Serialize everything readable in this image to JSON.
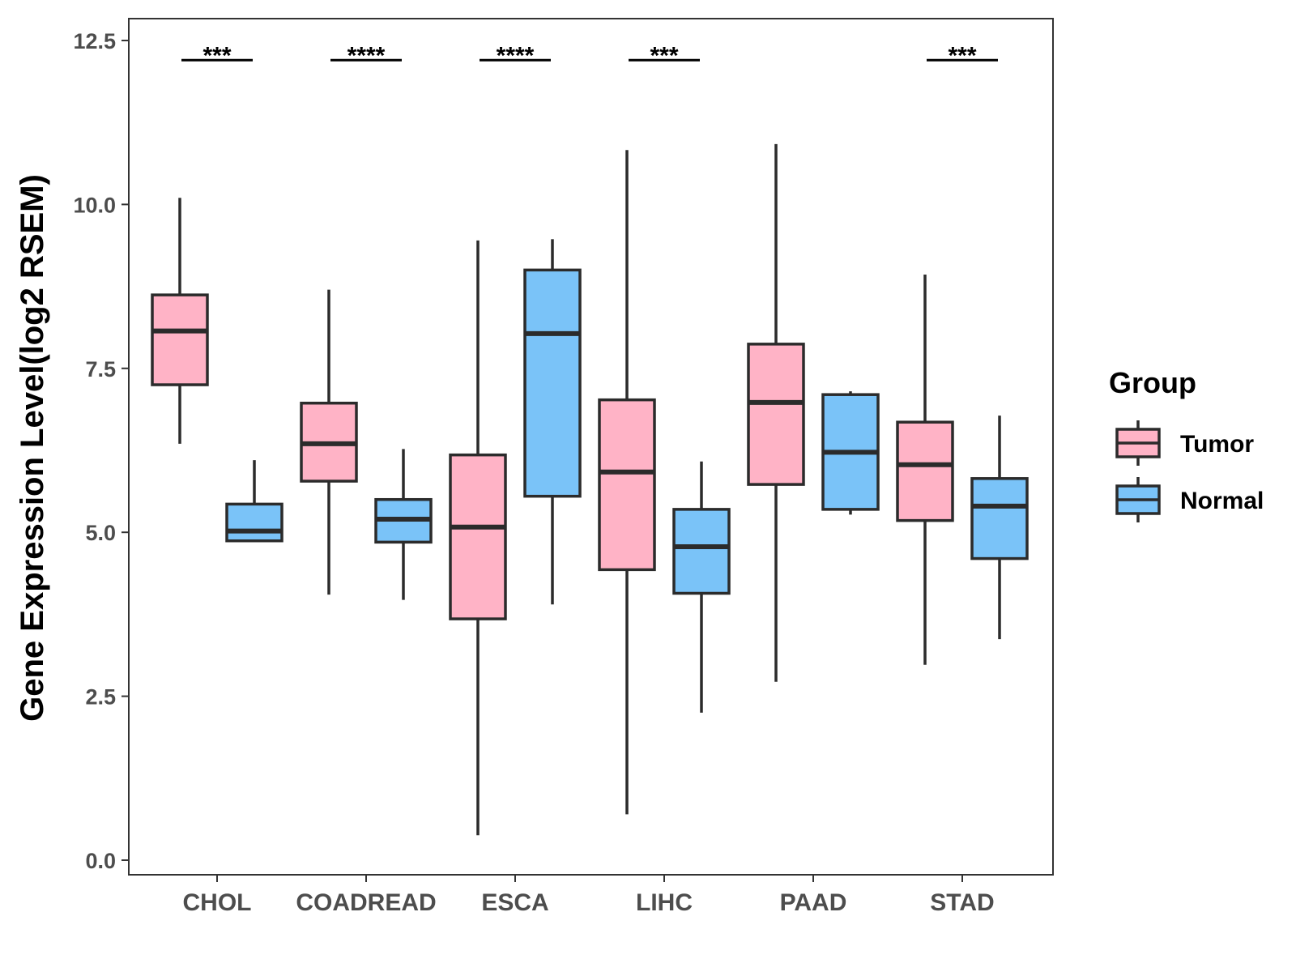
{
  "chart_data": {
    "type": "box",
    "title": "",
    "xlabel": "",
    "ylabel": "Gene Expression Level(log2 RSEM)",
    "ylim": [
      -0.2,
      12.85
    ],
    "yticks": [
      0.0,
      2.5,
      5.0,
      7.5,
      10.0,
      12.5
    ],
    "ytick_labels": [
      "0.0",
      "2.5",
      "5.0",
      "7.5",
      "10.0",
      "12.5"
    ],
    "categories": [
      "CHOL",
      "COADREAD",
      "ESCA",
      "LIHC",
      "PAAD",
      "STAD"
    ],
    "grid": false,
    "legend": {
      "title": "Group",
      "position": "right",
      "entries": [
        {
          "name": "Tumor",
          "color": "#FFB3C6"
        },
        {
          "name": "Normal",
          "color": "#7AC3F8"
        }
      ]
    },
    "series": [
      {
        "name": "Tumor",
        "color": "#FFB3C6",
        "boxes": [
          {
            "min": 6.35,
            "q1": 7.25,
            "median": 8.07,
            "q3": 8.62,
            "max": 10.1
          },
          {
            "min": 4.05,
            "q1": 5.78,
            "median": 6.35,
            "q3": 6.97,
            "max": 8.7
          },
          {
            "min": 0.38,
            "q1": 3.68,
            "median": 5.08,
            "q3": 6.18,
            "max": 9.45
          },
          {
            "min": 0.7,
            "q1": 4.43,
            "median": 5.92,
            "q3": 7.02,
            "max": 10.83
          },
          {
            "min": 2.72,
            "q1": 5.73,
            "median": 6.98,
            "q3": 7.87,
            "max": 10.92
          },
          {
            "min": 2.98,
            "q1": 5.18,
            "median": 6.03,
            "q3": 6.68,
            "max": 8.93
          }
        ]
      },
      {
        "name": "Normal",
        "color": "#7AC3F8",
        "boxes": [
          {
            "min": 4.87,
            "q1": 4.87,
            "median": 5.02,
            "q3": 5.43,
            "max": 6.1
          },
          {
            "min": 3.97,
            "q1": 4.85,
            "median": 5.2,
            "q3": 5.5,
            "max": 6.27
          },
          {
            "min": 3.9,
            "q1": 5.55,
            "median": 8.03,
            "q3": 9.0,
            "max": 9.47
          },
          {
            "min": 2.25,
            "q1": 4.07,
            "median": 4.78,
            "q3": 5.35,
            "max": 6.08
          },
          {
            "min": 5.27,
            "q1": 5.35,
            "median": 6.22,
            "q3": 7.1,
            "max": 7.15
          },
          {
            "min": 3.37,
            "q1": 4.6,
            "median": 5.4,
            "q3": 5.82,
            "max": 6.78
          }
        ]
      }
    ],
    "significance": [
      {
        "category": "CHOL",
        "label": "***",
        "y": 12.2
      },
      {
        "category": "COADREAD",
        "label": "****",
        "y": 12.2
      },
      {
        "category": "ESCA",
        "label": "****",
        "y": 12.2
      },
      {
        "category": "LIHC",
        "label": "***",
        "y": 12.2
      },
      {
        "category": "STAD",
        "label": "***",
        "y": 12.2
      }
    ]
  }
}
